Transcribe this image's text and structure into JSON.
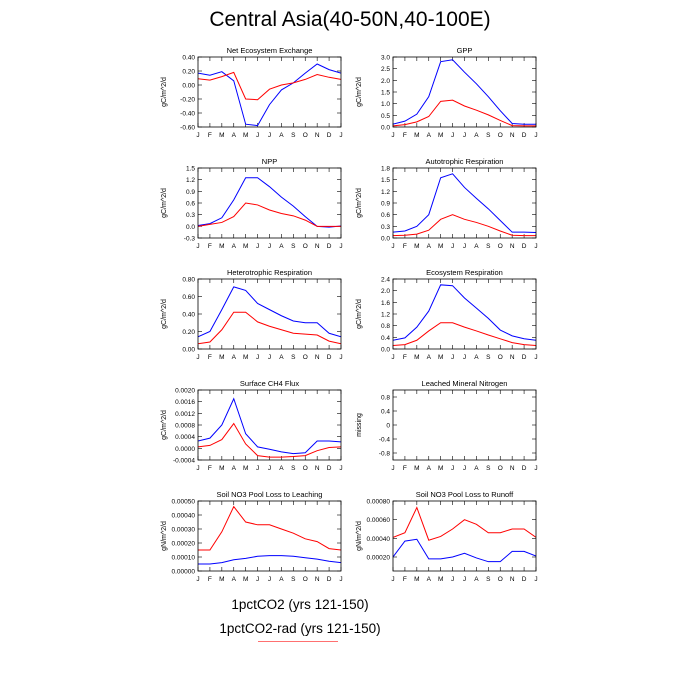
{
  "figure": {
    "title": "Central Asia(40-50N,40-100E)"
  },
  "legend": {
    "items": [
      {
        "label": "1pctCO2 (yrs 121-150)",
        "color": "#0000ff"
      },
      {
        "label": "1pctCO2-rad (yrs 121-150)",
        "color": "#ff0000"
      }
    ]
  },
  "chart_data": [
    {
      "type": "line",
      "title": "Net Ecosystem Exchange",
      "ylabel": "gC/m^2/d",
      "x": [
        "J",
        "F",
        "M",
        "A",
        "M",
        "J",
        "J",
        "A",
        "S",
        "O",
        "N",
        "D",
        "J"
      ],
      "ylim": [
        -0.6,
        0.4
      ],
      "yticks": [
        -0.6,
        -0.4,
        -0.2,
        0.0,
        0.2,
        0.4
      ],
      "ytick_labels": [
        "-0.60",
        "-0.40",
        "-0.20",
        "0.00",
        "0.20",
        "0.40"
      ],
      "series": [
        {
          "values": [
            0.17,
            0.14,
            0.19,
            0.06,
            -0.56,
            -0.58,
            -0.28,
            -0.07,
            0.03,
            0.17,
            0.3,
            0.22,
            0.17
          ],
          "color": "#0000ff"
        },
        {
          "values": [
            0.09,
            0.07,
            0.12,
            0.18,
            -0.2,
            -0.21,
            -0.06,
            0.0,
            0.03,
            0.08,
            0.15,
            0.11,
            0.08
          ],
          "color": "#ff0000"
        }
      ]
    },
    {
      "type": "line",
      "title": "GPP",
      "ylabel": "gC/m^2/d",
      "x": [
        "J",
        "F",
        "M",
        "A",
        "M",
        "J",
        "J",
        "A",
        "S",
        "O",
        "N",
        "D",
        "J"
      ],
      "ylim": [
        0,
        3.0
      ],
      "yticks": [
        0.0,
        0.5,
        1.0,
        1.5,
        2.0,
        2.5,
        3.0
      ],
      "ytick_labels": [
        "0.0",
        "0.5",
        "1.0",
        "1.5",
        "2.0",
        "2.5",
        "3.0"
      ],
      "series": [
        {
          "values": [
            0.12,
            0.25,
            0.55,
            1.3,
            2.8,
            2.88,
            2.35,
            1.85,
            1.3,
            0.7,
            0.15,
            0.12,
            0.12
          ],
          "color": "#0000ff"
        },
        {
          "values": [
            0.05,
            0.1,
            0.22,
            0.45,
            1.1,
            1.15,
            0.9,
            0.72,
            0.52,
            0.28,
            0.06,
            0.05,
            0.05
          ],
          "color": "#ff0000"
        }
      ]
    },
    {
      "type": "line",
      "title": "NPP",
      "ylabel": "gC/m^2/d",
      "x": [
        "J",
        "F",
        "M",
        "A",
        "M",
        "J",
        "J",
        "A",
        "S",
        "O",
        "N",
        "D",
        "J"
      ],
      "ylim": [
        -0.3,
        1.5
      ],
      "yticks": [
        -0.3,
        0.0,
        0.3,
        0.6,
        0.9,
        1.2,
        1.5
      ],
      "ytick_labels": [
        "-0.3",
        "0.0",
        "0.3",
        "0.6",
        "0.9",
        "1.2",
        "1.5"
      ],
      "series": [
        {
          "values": [
            0.02,
            0.07,
            0.22,
            0.68,
            1.25,
            1.25,
            1.02,
            0.75,
            0.52,
            0.25,
            0.0,
            -0.02,
            0.01
          ],
          "color": "#0000ff"
        },
        {
          "values": [
            0.0,
            0.05,
            0.1,
            0.25,
            0.6,
            0.55,
            0.42,
            0.33,
            0.27,
            0.16,
            0.0,
            0.0,
            0.0
          ],
          "color": "#ff0000"
        }
      ]
    },
    {
      "type": "line",
      "title": "Autotrophic Respiration",
      "ylabel": "gC/m^2/d",
      "x": [
        "J",
        "F",
        "M",
        "A",
        "M",
        "J",
        "J",
        "A",
        "S",
        "O",
        "N",
        "D",
        "J"
      ],
      "ylim": [
        0,
        1.8
      ],
      "yticks": [
        0.0,
        0.3,
        0.6,
        0.9,
        1.2,
        1.5,
        1.8
      ],
      "ytick_labels": [
        "0.0",
        "0.3",
        "0.6",
        "0.9",
        "1.2",
        "1.5",
        "1.8"
      ],
      "series": [
        {
          "values": [
            0.15,
            0.18,
            0.3,
            0.6,
            1.55,
            1.65,
            1.3,
            1.02,
            0.75,
            0.45,
            0.15,
            0.15,
            0.14
          ],
          "color": "#0000ff"
        },
        {
          "values": [
            0.06,
            0.07,
            0.1,
            0.2,
            0.48,
            0.6,
            0.48,
            0.4,
            0.3,
            0.18,
            0.07,
            0.06,
            0.06
          ],
          "color": "#ff0000"
        }
      ]
    },
    {
      "type": "line",
      "title": "Heterotrophic Respiration",
      "ylabel": "gC/m^2/d",
      "x": [
        "J",
        "F",
        "M",
        "A",
        "M",
        "J",
        "J",
        "A",
        "S",
        "O",
        "N",
        "D",
        "J"
      ],
      "ylim": [
        0,
        0.8
      ],
      "yticks": [
        0.0,
        0.2,
        0.4,
        0.6,
        0.8
      ],
      "ytick_labels": [
        "0.00",
        "0.20",
        "0.40",
        "0.60",
        "0.80"
      ],
      "series": [
        {
          "values": [
            0.14,
            0.2,
            0.45,
            0.71,
            0.67,
            0.52,
            0.45,
            0.38,
            0.32,
            0.3,
            0.3,
            0.18,
            0.14
          ],
          "color": "#0000ff"
        },
        {
          "values": [
            0.06,
            0.08,
            0.22,
            0.42,
            0.42,
            0.31,
            0.26,
            0.22,
            0.18,
            0.17,
            0.16,
            0.09,
            0.06
          ],
          "color": "#ff0000"
        }
      ]
    },
    {
      "type": "line",
      "title": "Ecosystem Respiration",
      "ylabel": "gC/m^2/d",
      "x": [
        "J",
        "F",
        "M",
        "A",
        "M",
        "J",
        "J",
        "A",
        "S",
        "O",
        "N",
        "D",
        "J"
      ],
      "ylim": [
        0,
        2.4
      ],
      "yticks": [
        0.0,
        0.4,
        0.8,
        1.2,
        1.6,
        2.0,
        2.4
      ],
      "ytick_labels": [
        "0.0",
        "0.4",
        "0.8",
        "1.2",
        "1.6",
        "2.0",
        "2.4"
      ],
      "series": [
        {
          "values": [
            0.3,
            0.38,
            0.75,
            1.3,
            2.2,
            2.17,
            1.75,
            1.4,
            1.05,
            0.65,
            0.45,
            0.35,
            0.3
          ],
          "color": "#0000ff"
        },
        {
          "values": [
            0.12,
            0.15,
            0.3,
            0.62,
            0.9,
            0.9,
            0.75,
            0.62,
            0.48,
            0.35,
            0.22,
            0.15,
            0.12
          ],
          "color": "#ff0000"
        }
      ]
    },
    {
      "type": "line",
      "title": "Surface CH4 Flux",
      "ylabel": "gC/m^2/d",
      "x": [
        "J",
        "F",
        "M",
        "A",
        "M",
        "J",
        "J",
        "A",
        "S",
        "O",
        "N",
        "D",
        "J"
      ],
      "ylim": [
        -0.0004,
        0.002
      ],
      "yticks": [
        -0.0004,
        0.0,
        0.0004,
        0.0008,
        0.0012,
        0.0016,
        0.002
      ],
      "ytick_labels": [
        "-0.0004",
        "0.0000",
        "0.0004",
        "0.0008",
        "0.0012",
        "0.0016",
        "0.0020"
      ],
      "series": [
        {
          "values": [
            0.00025,
            0.00035,
            0.0008,
            0.0017,
            0.0005,
            5e-05,
            -3e-05,
            -0.00012,
            -0.00018,
            -0.00015,
            0.00025,
            0.00025,
            0.00022
          ],
          "color": "#0000ff"
        },
        {
          "values": [
            5e-05,
            0.0001,
            0.0003,
            0.00085,
            0.00015,
            -0.00025,
            -0.0003,
            -0.0003,
            -0.00028,
            -0.00025,
            -8e-05,
            3e-05,
            5e-05
          ],
          "color": "#ff0000"
        }
      ]
    },
    {
      "type": "line",
      "title": "Leached Mineral Nitrogen",
      "ylabel": "missing",
      "x": [
        "J",
        "F",
        "M",
        "A",
        "M",
        "J",
        "J",
        "A",
        "S",
        "O",
        "N",
        "D",
        "J"
      ],
      "ylim": [
        -1.0,
        1.0
      ],
      "yticks": [
        -0.8,
        -0.4,
        0.0,
        0.4,
        0.8
      ],
      "ytick_labels": [
        "-0.8",
        "-0.4",
        "0",
        "0.4",
        "0.8"
      ],
      "series": []
    },
    {
      "type": "line",
      "title": "Soil NO3 Pool Loss to Leaching",
      "ylabel": "gN/m^2/d",
      "x": [
        "J",
        "F",
        "M",
        "A",
        "M",
        "J",
        "J",
        "A",
        "S",
        "O",
        "N",
        "D",
        "J"
      ],
      "ylim": [
        0,
        0.0005
      ],
      "yticks": [
        0.0,
        0.0001,
        0.0002,
        0.0003,
        0.0004,
        0.0005
      ],
      "ytick_labels": [
        "0.00000",
        "0.00010",
        "0.00020",
        "0.00030",
        "0.00040",
        "0.00050"
      ],
      "series": [
        {
          "values": [
            5e-05,
            5e-05,
            6e-05,
            8e-05,
            9e-05,
            0.000105,
            0.00011,
            0.00011,
            0.000105,
            9.5e-05,
            8.5e-05,
            7e-05,
            6e-05
          ],
          "color": "#0000ff"
        },
        {
          "values": [
            0.00015,
            0.00015,
            0.00028,
            0.00046,
            0.00035,
            0.00033,
            0.00033,
            0.0003,
            0.00027,
            0.00023,
            0.00021,
            0.00016,
            0.00015
          ],
          "color": "#ff0000"
        }
      ]
    },
    {
      "type": "line",
      "title": "Soil NO3 Pool Loss to Runoff",
      "ylabel": "gN/m^2/d",
      "x": [
        "J",
        "F",
        "M",
        "A",
        "M",
        "J",
        "J",
        "A",
        "S",
        "O",
        "N",
        "D",
        "J"
      ],
      "ylim": [
        5e-05,
        0.0008
      ],
      "yticks": [
        0.0002,
        0.0004,
        0.0006,
        0.0008
      ],
      "ytick_labels": [
        "0.00020",
        "0.00040",
        "0.00060",
        "0.00080"
      ],
      "series": [
        {
          "values": [
            0.0002,
            0.00037,
            0.00039,
            0.00018,
            0.00018,
            0.0002,
            0.00024,
            0.00019,
            0.00015,
            0.00015,
            0.00026,
            0.00026,
            0.00021
          ],
          "color": "#0000ff"
        },
        {
          "values": [
            0.00041,
            0.00046,
            0.00073,
            0.00038,
            0.00042,
            0.0005,
            0.0006,
            0.00055,
            0.00046,
            0.00046,
            0.0005,
            0.0005,
            0.00041
          ],
          "color": "#ff0000"
        }
      ]
    }
  ]
}
